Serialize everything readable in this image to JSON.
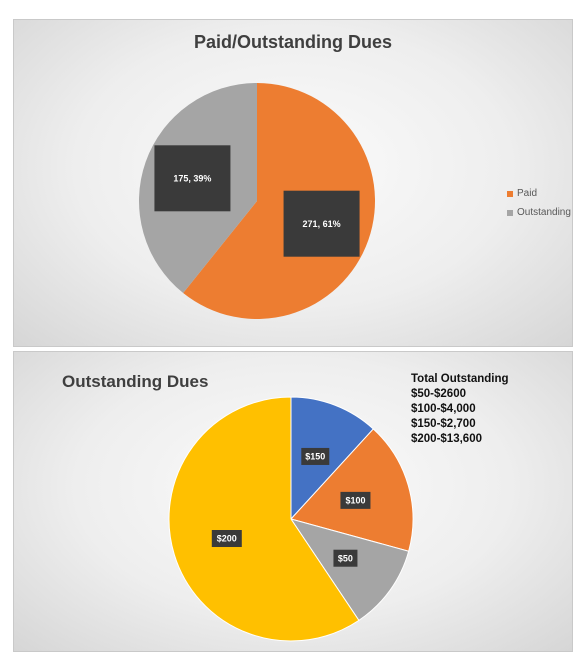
{
  "chart_data": [
    {
      "type": "pie",
      "title": "Paid/Outstanding Dues",
      "categories": [
        "Paid",
        "Outstanding"
      ],
      "values": [
        271,
        175
      ],
      "data_labels": [
        "271, 61%",
        "175, 39%"
      ],
      "colors": [
        "#ED7D31",
        "#A5A5A5"
      ],
      "legend": "right"
    },
    {
      "type": "pie",
      "title": "Outstanding Dues",
      "categories": [
        "$150",
        "$100",
        "$50",
        "$200"
      ],
      "values": [
        2700,
        4000,
        2600,
        13600
      ],
      "data_labels": [
        "$150",
        "$100",
        "$50",
        "$200"
      ],
      "colors": [
        "#4472C4",
        "#ED7D31",
        "#A5A5A5",
        "#FFC000"
      ],
      "annotation": {
        "heading": "Total Outstanding",
        "lines": [
          "$50-$2600",
          "$100-$4,000",
          "$150-$2,700",
          "$200-$13,600"
        ]
      }
    }
  ]
}
